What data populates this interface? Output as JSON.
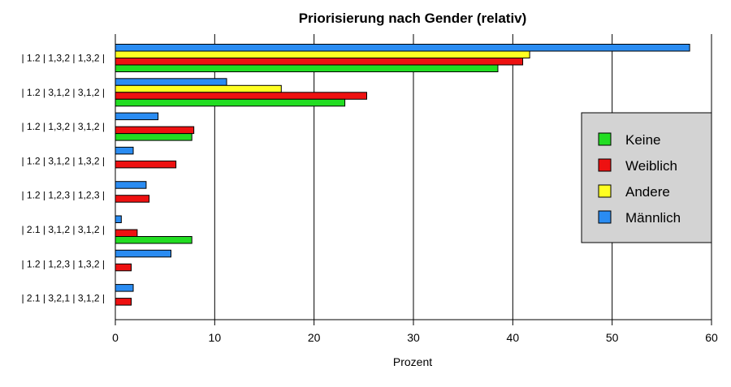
{
  "chart_data": {
    "type": "bar",
    "orientation": "horizontal",
    "title": "Priorisierung nach Gender (relativ)",
    "xlabel": "Prozent",
    "ylabel": "",
    "xlim": [
      0,
      60
    ],
    "xticks": [
      0,
      10,
      20,
      30,
      40,
      50,
      60
    ],
    "grid": "vertical",
    "legend_position": "right",
    "categories": [
      "| 1.2 | 1,3,2 | 1,3,2 |",
      "| 1.2 | 3,1,2 | 3,1,2 |",
      "| 1.2 | 1,3,2 | 3,1,2 |",
      "| 1.2 | 3,1,2 | 1,3,2 |",
      "| 1.2 | 1,2,3 | 1,2,3 |",
      "| 2.1 | 3,1,2 | 3,1,2 |",
      "| 1.2 | 1,2,3 | 1,3,2 |",
      "| 2.1 | 3,2,1 | 3,1,2 |"
    ],
    "series": [
      {
        "name": "Keine",
        "color": "#22dd22",
        "values": [
          38.5,
          23.1,
          7.7,
          0,
          0,
          7.7,
          0,
          0
        ]
      },
      {
        "name": "Weiblich",
        "color": "#ee1111",
        "values": [
          41.0,
          25.3,
          7.9,
          6.1,
          3.4,
          2.2,
          1.6,
          1.6
        ]
      },
      {
        "name": "Andere",
        "color": "#ffff22",
        "values": [
          41.7,
          16.7,
          0,
          0,
          0,
          0,
          0,
          0
        ]
      },
      {
        "name": "Männlich",
        "color": "#2a8cf2",
        "values": [
          57.8,
          11.2,
          4.3,
          1.8,
          3.1,
          0.6,
          5.6,
          1.8
        ]
      }
    ]
  }
}
